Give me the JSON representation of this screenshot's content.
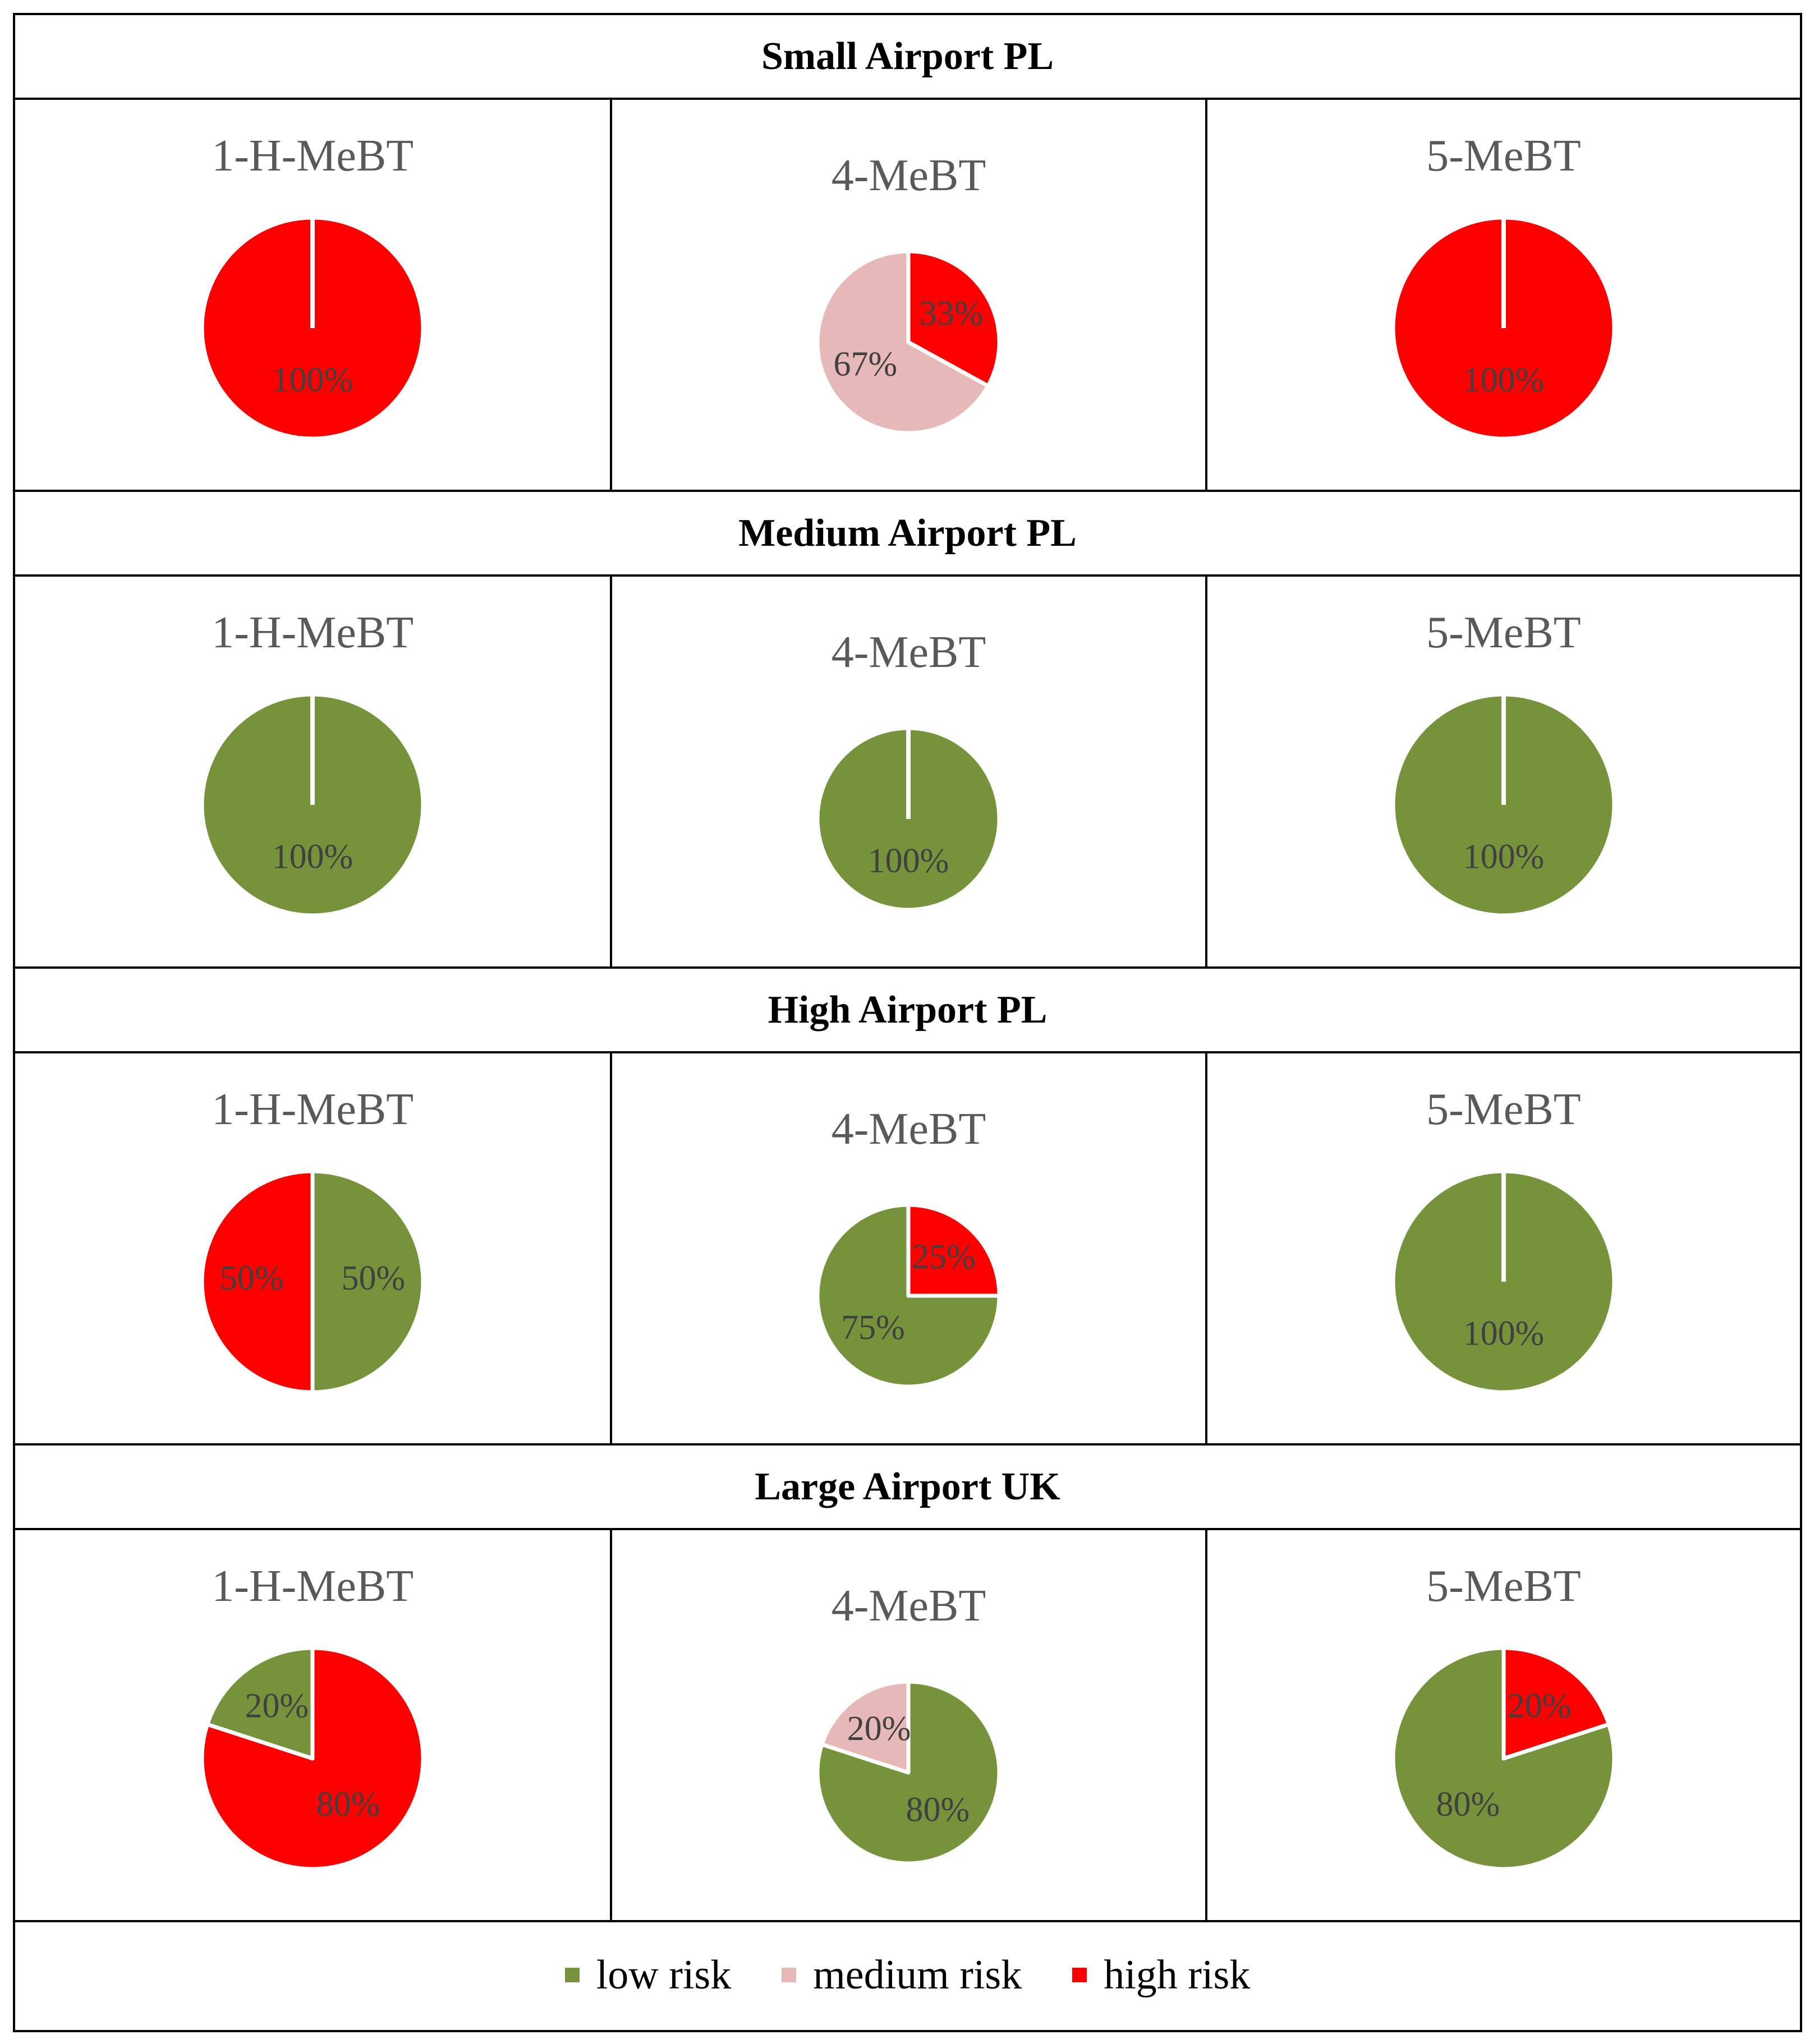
{
  "colors": {
    "low": "#76933c",
    "medium": "#e6b9b8",
    "high": "#ff0000"
  },
  "legend": [
    {
      "key": "low",
      "label": "low risk"
    },
    {
      "key": "medium",
      "label": "medium risk"
    },
    {
      "key": "high",
      "label": "high risk"
    }
  ],
  "chart_data": [
    {
      "type": "pie",
      "group": "Small Airport PL",
      "title": "1-H-MeBT",
      "slices": [
        {
          "key": "high",
          "value": 100,
          "label": "100%"
        }
      ]
    },
    {
      "type": "pie",
      "group": "Small Airport PL",
      "title": "4-MeBT",
      "slices": [
        {
          "key": "high",
          "value": 33,
          "label": "33%"
        },
        {
          "key": "medium",
          "value": 67,
          "label": "67%"
        }
      ]
    },
    {
      "type": "pie",
      "group": "Small Airport PL",
      "title": "5-MeBT",
      "slices": [
        {
          "key": "high",
          "value": 100,
          "label": "100%"
        }
      ]
    },
    {
      "type": "pie",
      "group": "Medium Airport PL",
      "title": "1-H-MeBT",
      "slices": [
        {
          "key": "low",
          "value": 100,
          "label": "100%"
        }
      ]
    },
    {
      "type": "pie",
      "group": "Medium Airport PL",
      "title": "4-MeBT",
      "slices": [
        {
          "key": "low",
          "value": 100,
          "label": "100%"
        }
      ]
    },
    {
      "type": "pie",
      "group": "Medium Airport PL",
      "title": "5-MeBT",
      "slices": [
        {
          "key": "low",
          "value": 100,
          "label": "100%"
        }
      ]
    },
    {
      "type": "pie",
      "group": "High Airport PL",
      "title": "1-H-MeBT",
      "slices": [
        {
          "key": "low",
          "value": 50,
          "label": "50%"
        },
        {
          "key": "high",
          "value": 50,
          "label": "50%"
        }
      ]
    },
    {
      "type": "pie",
      "group": "High Airport PL",
      "title": "4-MeBT",
      "slices": [
        {
          "key": "high",
          "value": 25,
          "label": "25%"
        },
        {
          "key": "low",
          "value": 75,
          "label": "75%"
        }
      ]
    },
    {
      "type": "pie",
      "group": "High Airport PL",
      "title": "5-MeBT",
      "slices": [
        {
          "key": "low",
          "value": 100,
          "label": "100%"
        }
      ]
    },
    {
      "type": "pie",
      "group": "Large Airport UK",
      "title": "1-H-MeBT",
      "slices": [
        {
          "key": "high",
          "value": 80,
          "label": "80%"
        },
        {
          "key": "low",
          "value": 20,
          "label": "20%"
        }
      ]
    },
    {
      "type": "pie",
      "group": "Large Airport UK",
      "title": "4-MeBT",
      "slices": [
        {
          "key": "low",
          "value": 80,
          "label": "80%"
        },
        {
          "key": "medium",
          "value": 20,
          "label": "20%"
        }
      ]
    },
    {
      "type": "pie",
      "group": "Large Airport UK",
      "title": "5-MeBT",
      "slices": [
        {
          "key": "high",
          "value": 20,
          "label": "20%"
        },
        {
          "key": "low",
          "value": 80,
          "label": "80%"
        }
      ]
    }
  ]
}
